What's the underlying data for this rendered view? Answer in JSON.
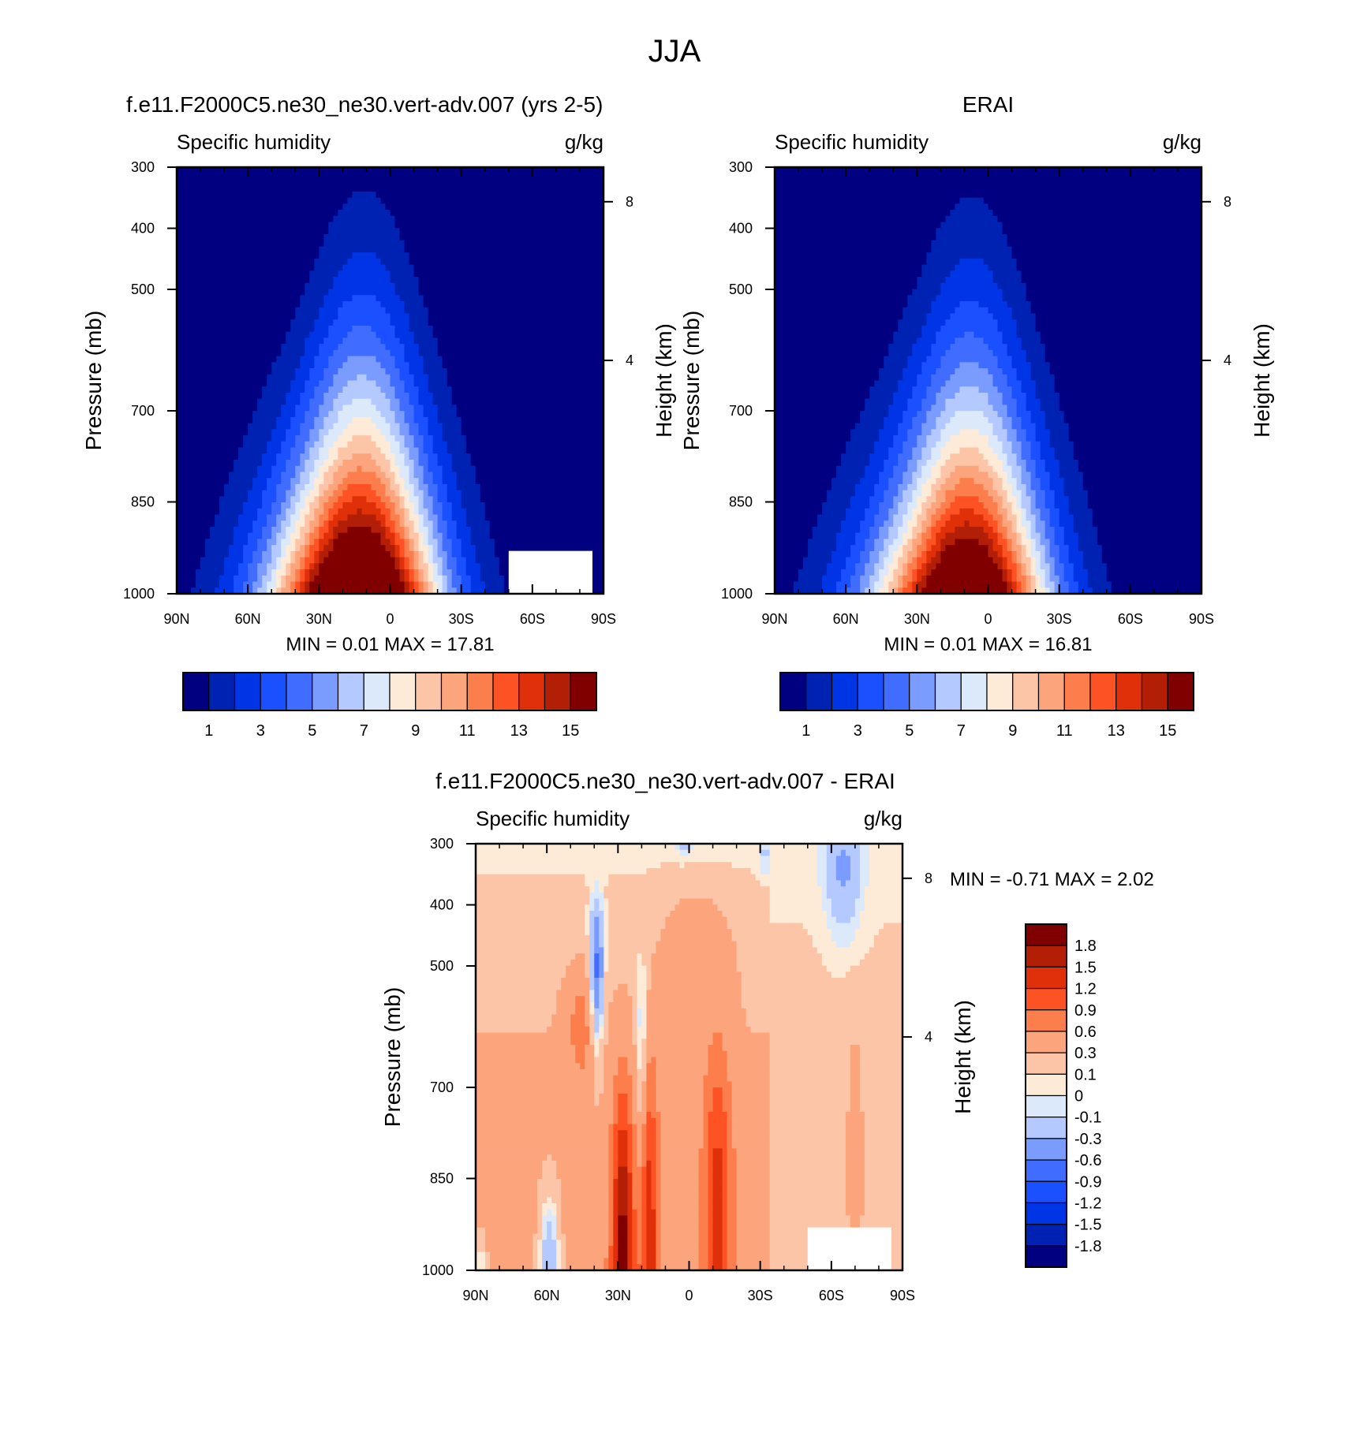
{
  "figure": {
    "title": "JJA"
  },
  "chart_data": [
    {
      "id": "model",
      "type": "heatmap",
      "title": "f.e11.F2000C5.ne30_ne30.vert-adv.007 (yrs 2-5)",
      "left_label": "Specific humidity",
      "right_label": "g/kg",
      "xlabel": "",
      "ylabel": "Pressure (mb)",
      "right_axis_label": "Height (km)",
      "x_ticks": [
        "90N",
        "60N",
        "30N",
        "0",
        "30S",
        "60S",
        "90S"
      ],
      "y_ticks": [
        "300",
        "400",
        "500",
        "700",
        "850",
        "1000"
      ],
      "right_ticks": [
        "8",
        "4"
      ],
      "xlim": [
        90,
        -90
      ],
      "ylim": [
        1000,
        300
      ],
      "grid": false,
      "stats": "MIN =   0.01  MAX =  17.81",
      "colorbar": {
        "orientation": "horizontal",
        "colors": [
          "#000080",
          "#0022b3",
          "#0035e6",
          "#1a50ff",
          "#406dff",
          "#7a9bff",
          "#b3c9ff",
          "#dbe9fb",
          "#fdebd8",
          "#fdc5a8",
          "#fca57d",
          "#fc7e4d",
          "#fc5224",
          "#e03009",
          "#b31e06",
          "#800000"
        ],
        "labels": [
          "1",
          "3",
          "5",
          "7",
          "9",
          "11",
          "13",
          "15"
        ],
        "levels": [
          1,
          2,
          3,
          4,
          5,
          6,
          7,
          8,
          9,
          10,
          11,
          12,
          13,
          14,
          15
        ]
      },
      "field": {
        "peak_latitude": 12,
        "peak_value": 17.81,
        "min_value": 0.01,
        "masked_region": {
          "lat_from": -50,
          "lat_to": -90,
          "pressure_from": 930,
          "pressure_to": 1000
        }
      }
    },
    {
      "id": "obs",
      "type": "heatmap",
      "title": "ERAI",
      "left_label": "Specific humidity",
      "right_label": "g/kg",
      "xlabel": "",
      "ylabel": "Pressure (mb)",
      "right_axis_label": "Height (km)",
      "x_ticks": [
        "90N",
        "60N",
        "30N",
        "0",
        "30S",
        "60S",
        "90S"
      ],
      "y_ticks": [
        "300",
        "400",
        "500",
        "700",
        "850",
        "1000"
      ],
      "right_ticks": [
        "8",
        "4"
      ],
      "xlim": [
        90,
        -90
      ],
      "ylim": [
        1000,
        300
      ],
      "grid": false,
      "stats": "MIN =   0.01  MAX =  16.81",
      "colorbar": {
        "orientation": "horizontal",
        "colors": [
          "#000080",
          "#0022b3",
          "#0035e6",
          "#1a50ff",
          "#406dff",
          "#7a9bff",
          "#b3c9ff",
          "#dbe9fb",
          "#fdebd8",
          "#fdc5a8",
          "#fca57d",
          "#fc7e4d",
          "#fc5224",
          "#e03009",
          "#b31e06",
          "#800000"
        ],
        "labels": [
          "1",
          "3",
          "5",
          "7",
          "9",
          "11",
          "13",
          "15"
        ],
        "levels": [
          1,
          2,
          3,
          4,
          5,
          6,
          7,
          8,
          9,
          10,
          11,
          12,
          13,
          14,
          15
        ]
      },
      "field": {
        "peak_latitude": 8,
        "peak_value": 16.81,
        "min_value": 0.01
      }
    },
    {
      "id": "diff",
      "type": "heatmap",
      "title": "f.e11.F2000C5.ne30_ne30.vert-adv.007 - ERAI",
      "left_label": "Specific humidity",
      "right_label": "g/kg",
      "xlabel": "",
      "ylabel": "Pressure (mb)",
      "right_axis_label": "Height (km)",
      "x_ticks": [
        "90N",
        "60N",
        "30N",
        "0",
        "30S",
        "60S",
        "90S"
      ],
      "y_ticks": [
        "300",
        "400",
        "500",
        "700",
        "850",
        "1000"
      ],
      "right_ticks": [
        "8",
        "4"
      ],
      "xlim": [
        90,
        -90
      ],
      "ylim": [
        1000,
        300
      ],
      "grid": false,
      "stats": "MIN =  -0.71  MAX =   2.02",
      "colorbar": {
        "orientation": "vertical",
        "colors": [
          "#800000",
          "#b31e06",
          "#e03009",
          "#fc5224",
          "#fc7e4d",
          "#fca57d",
          "#fdc5a8",
          "#fdebd8",
          "#dbe9fb",
          "#b3c9ff",
          "#7a9bff",
          "#406dff",
          "#1a50ff",
          "#0035e6",
          "#0022b3",
          "#000080"
        ],
        "labels": [
          "1.8",
          "1.5",
          "1.2",
          "0.9",
          "0.6",
          "0.3",
          "0.1",
          "0",
          "-0.1",
          "-0.3",
          "-0.6",
          "-0.9",
          "-1.2",
          "-1.5",
          "-1.8"
        ],
        "levels": [
          1.8,
          1.5,
          1.2,
          0.9,
          0.6,
          0.3,
          0.1,
          0,
          -0.1,
          -0.3,
          -0.6,
          -0.9,
          -1.2,
          -1.5,
          -1.8
        ]
      },
      "field": {
        "min_value": -0.71,
        "max_value": 2.02,
        "masked_region": {
          "lat_from": -50,
          "lat_to": -90,
          "pressure_from": 930,
          "pressure_to": 1000
        }
      }
    }
  ]
}
